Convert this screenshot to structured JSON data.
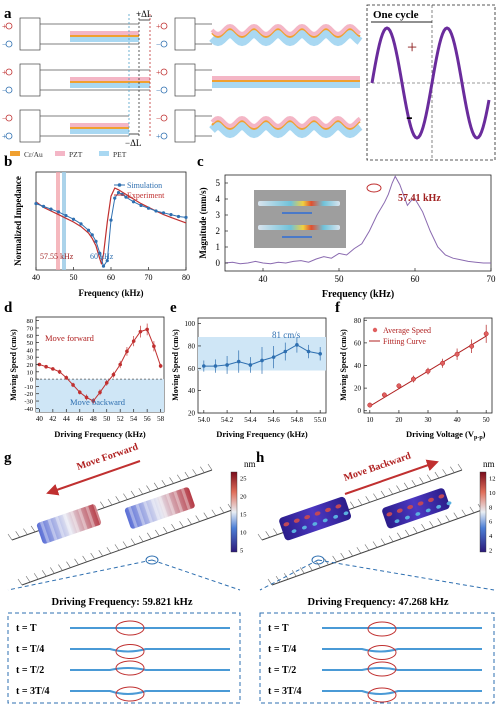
{
  "panels": {
    "a": {
      "letter": "a",
      "delta_plus": "+ΔL",
      "delta_minus": "−ΔL",
      "legend": [
        "Cr/Au",
        "PZT",
        "PET"
      ],
      "colors": {
        "crau": "#f0a030",
        "pzt": "#f4b6c6",
        "pet": "#a9d8f2",
        "wave": "#6a2c9c"
      },
      "cycle_title": "One cycle",
      "plus": "+",
      "minus": "-"
    },
    "b": {
      "letter": "b",
      "xlabel": "Frequency (kHz)",
      "ylabel": "Normalized Impedance",
      "legend": [
        "Simulation",
        "Experiment"
      ],
      "ann1": "57.55 kHz",
      "ann2": "60 kHz",
      "xticks": [
        "40",
        "50",
        "60",
        "70",
        "80"
      ]
    },
    "c": {
      "letter": "c",
      "xlabel": "Frequency (kHz)",
      "ylabel": "Magnitude (mm/s)",
      "ann": "57.41 kHz",
      "xticks": [
        "40",
        "50",
        "60",
        "70"
      ],
      "yticks": [
        "0",
        "1",
        "2",
        "3",
        "4",
        "5"
      ]
    },
    "d": {
      "letter": "d",
      "xlabel": "Driving Frequency (kHz)",
      "ylabel": "Moving Speed (cm/s)",
      "forward": "Move forward",
      "backward": "Move backward",
      "xticks": [
        "40",
        "42",
        "44",
        "46",
        "48",
        "50",
        "52",
        "54",
        "56",
        "58"
      ],
      "yticks": [
        "-40",
        "-30",
        "-20",
        "-10",
        "0",
        "10",
        "20",
        "30",
        "40",
        "50",
        "60",
        "70",
        "80"
      ]
    },
    "e": {
      "letter": "e",
      "xlabel": "Driving Frequency (kHz)",
      "ylabel": "Moving Speed (cm/s)",
      "ann": "81 cm/s",
      "xticks": [
        "54.0",
        "54.2",
        "54.4",
        "54.6",
        "54.8",
        "55.0"
      ],
      "yticks": [
        "20",
        "40",
        "60",
        "80",
        "100"
      ]
    },
    "f": {
      "letter": "f",
      "xlabel": "Driving Voltage (V",
      "xlabel_sub": "p-p",
      "xlabel_end": ")",
      "ylabel": "Moving Speed (cm/s)",
      "legend": [
        "Average Speed",
        "Fitting Curve"
      ],
      "xticks": [
        "10",
        "20",
        "30",
        "40",
        "50"
      ],
      "yticks": [
        "0",
        "20",
        "40",
        "60",
        "80"
      ]
    },
    "g": {
      "letter": "g",
      "arrow_label": "Move Forward",
      "unit": "nm",
      "cbar_ticks": [
        "25",
        "20",
        "15",
        "10",
        "5"
      ],
      "freq": "Driving Frequency: 59.821 kHz",
      "phases": [
        "t = T",
        "t = T/4",
        "t = T/2",
        "t = 3T/4"
      ]
    },
    "h": {
      "letter": "h",
      "arrow_label": "Move Backward",
      "unit": "nm",
      "cbar_ticks": [
        "12",
        "10",
        "8",
        "6",
        "4",
        "2"
      ],
      "freq": "Driving Frequency: 47.268 kHz",
      "phases": [
        "t = T",
        "t = T/4",
        "t = T/2",
        "t = 3T/4"
      ]
    }
  },
  "chart_data": [
    {
      "type": "line",
      "panel": "b",
      "xlabel": "Frequency (kHz)",
      "ylabel": "Normalized Impedance",
      "xlim": [
        40,
        80
      ],
      "series": [
        {
          "name": "Simulation",
          "x": [
            40,
            42,
            44,
            46,
            48,
            50,
            52,
            54,
            55,
            56,
            57,
            58,
            59,
            60,
            61,
            62,
            63,
            64,
            66,
            68,
            70,
            72,
            74,
            76,
            78,
            80
          ],
          "y": [
            0.7,
            0.67,
            0.64,
            0.61,
            0.57,
            0.53,
            0.48,
            0.41,
            0.36,
            0.29,
            0.16,
            0.02,
            0.08,
            0.52,
            0.76,
            0.82,
            0.8,
            0.77,
            0.72,
            0.68,
            0.65,
            0.62,
            0.6,
            0.58,
            0.56,
            0.55
          ]
        },
        {
          "name": "Experiment",
          "x": [
            40,
            42,
            44,
            46,
            48,
            50,
            52,
            54,
            55,
            56,
            57,
            57.5,
            58,
            59,
            60,
            61,
            62,
            64,
            66,
            68,
            70,
            72,
            74,
            76,
            78,
            80
          ],
          "y": [
            0.72,
            0.66,
            0.62,
            0.58,
            0.54,
            0.5,
            0.45,
            0.38,
            0.32,
            0.24,
            0.1,
            0.04,
            0.15,
            0.5,
            0.78,
            0.87,
            0.85,
            0.8,
            0.75,
            0.7,
            0.66,
            0.62,
            0.58,
            0.55,
            0.52,
            0.49
          ]
        }
      ]
    },
    {
      "type": "line",
      "panel": "c",
      "xlabel": "Frequency (kHz)",
      "ylabel": "Magnitude (mm/s)",
      "xlim": [
        35,
        70
      ],
      "ylim": [
        -0.5,
        5.5
      ],
      "x": [
        35,
        36,
        37,
        38,
        39,
        40,
        41,
        42,
        43,
        44,
        45,
        46,
        47,
        48,
        49,
        50,
        51,
        52,
        53,
        54,
        55,
        56,
        56.5,
        57,
        57.4,
        58,
        59,
        59.5,
        60,
        61,
        62,
        63,
        64,
        65,
        66,
        67,
        68,
        69,
        70
      ],
      "y": [
        0.0,
        0.05,
        -0.05,
        0.0,
        0.1,
        0.0,
        -0.05,
        0.05,
        0.0,
        0.1,
        0.15,
        0.05,
        0.25,
        0.4,
        0.3,
        0.6,
        0.5,
        0.9,
        1.2,
        2.0,
        3.0,
        3.8,
        4.3,
        5.0,
        5.41,
        4.9,
        3.6,
        3.9,
        4.0,
        3.2,
        2.0,
        1.0,
        0.5,
        0.3,
        0.2,
        0.1,
        0.05,
        0.0,
        0.0
      ]
    },
    {
      "type": "line",
      "panel": "d",
      "xlabel": "Driving Frequency (kHz)",
      "ylabel": "Moving Speed (cm/s)",
      "xlim": [
        39.5,
        58.5
      ],
      "ylim": [
        -45,
        85
      ],
      "x": [
        40,
        41,
        42,
        43,
        44,
        45,
        46,
        47,
        48,
        49,
        50,
        51,
        52,
        53,
        54,
        55,
        56,
        57,
        58
      ],
      "y": [
        20,
        17,
        14,
        10,
        2,
        -8,
        -18,
        -25,
        -30,
        -18,
        -5,
        6,
        20,
        38,
        52,
        65,
        68,
        45,
        18
      ],
      "err": [
        2,
        2,
        2,
        3,
        3,
        3,
        3,
        4,
        4,
        4,
        4,
        4,
        5,
        6,
        7,
        8,
        8,
        7,
        3
      ]
    },
    {
      "type": "line",
      "panel": "e",
      "xlabel": "Driving Frequency (kHz)",
      "ylabel": "Moving Speed (cm/s)",
      "xlim": [
        53.95,
        55.05
      ],
      "ylim": [
        20,
        105
      ],
      "x": [
        54.0,
        54.1,
        54.2,
        54.3,
        54.4,
        54.5,
        54.6,
        54.7,
        54.8,
        54.9,
        55.0
      ],
      "y": [
        62,
        62,
        63,
        66,
        63,
        67,
        70,
        75,
        81,
        75,
        73
      ],
      "err": [
        5,
        6,
        8,
        10,
        7,
        12,
        10,
        8,
        7,
        6,
        6
      ]
    },
    {
      "type": "scatter",
      "panel": "f",
      "xlabel": "Driving Voltage (Vp-p)",
      "ylabel": "Moving Speed (cm/s)",
      "xlim": [
        8,
        52
      ],
      "ylim": [
        -2,
        82
      ],
      "series": [
        {
          "name": "Average Speed",
          "x": [
            10,
            15,
            20,
            25,
            30,
            35,
            40,
            45,
            50
          ],
          "y": [
            5,
            14,
            22,
            28,
            35,
            42,
            50,
            57,
            68
          ],
          "err": [
            1,
            2,
            2,
            3,
            3,
            4,
            5,
            6,
            8
          ]
        },
        {
          "name": "Fitting Curve",
          "x": [
            10,
            50
          ],
          "y": [
            4,
            66
          ]
        }
      ]
    }
  ]
}
